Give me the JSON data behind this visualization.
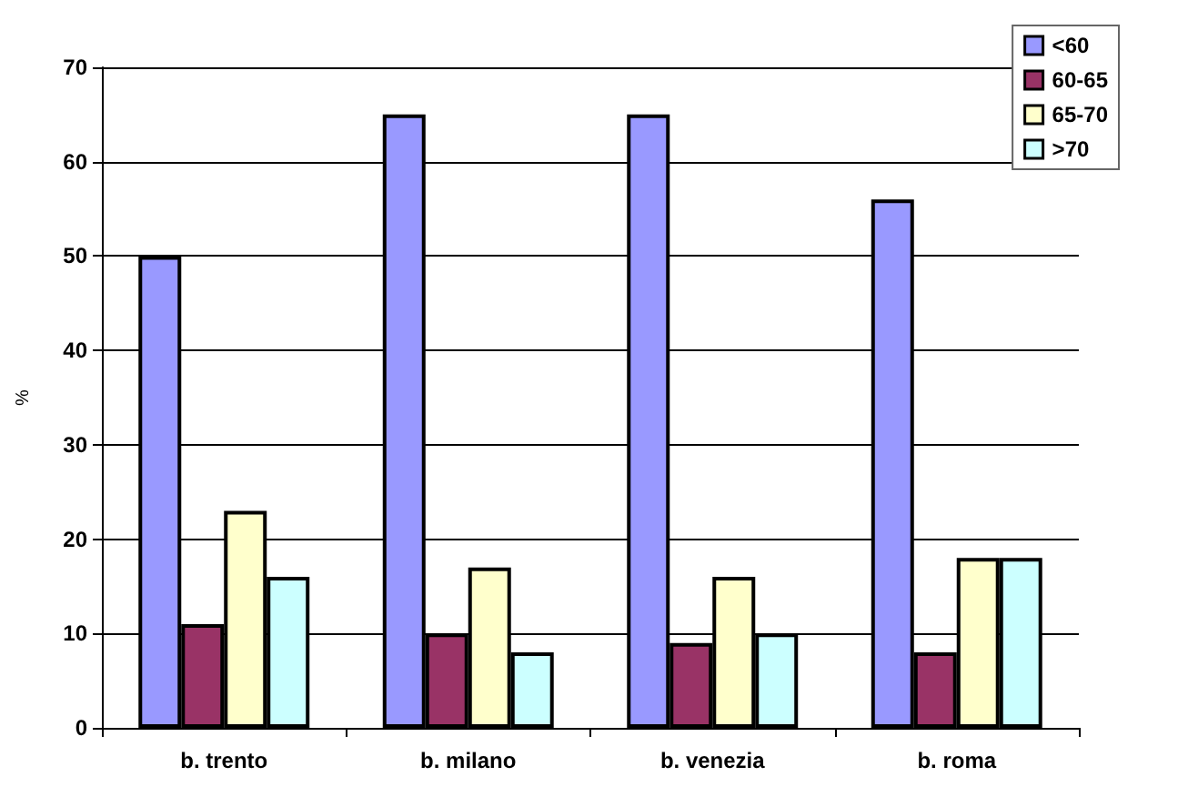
{
  "chart_data": {
    "type": "bar",
    "ylabel": "%",
    "categories": [
      "b. trento",
      "b. milano",
      "b. venezia",
      "b. roma"
    ],
    "series": [
      {
        "name": "<60",
        "color": "#9999ff",
        "values": [
          50,
          65,
          65,
          56
        ]
      },
      {
        "name": "60-65",
        "color": "#993366",
        "values": [
          11,
          10,
          9,
          8
        ]
      },
      {
        "name": "65-70",
        "color": "#ffffcc",
        "values": [
          23,
          17,
          16,
          18
        ]
      },
      {
        "name": ">70",
        "color": "#ccffff",
        "values": [
          16,
          8,
          10,
          18
        ]
      }
    ],
    "ylim": [
      0,
      70
    ],
    "yticks": [
      0,
      10,
      20,
      30,
      40,
      50,
      60,
      70
    ],
    "grid": "y",
    "legend": "top right"
  }
}
